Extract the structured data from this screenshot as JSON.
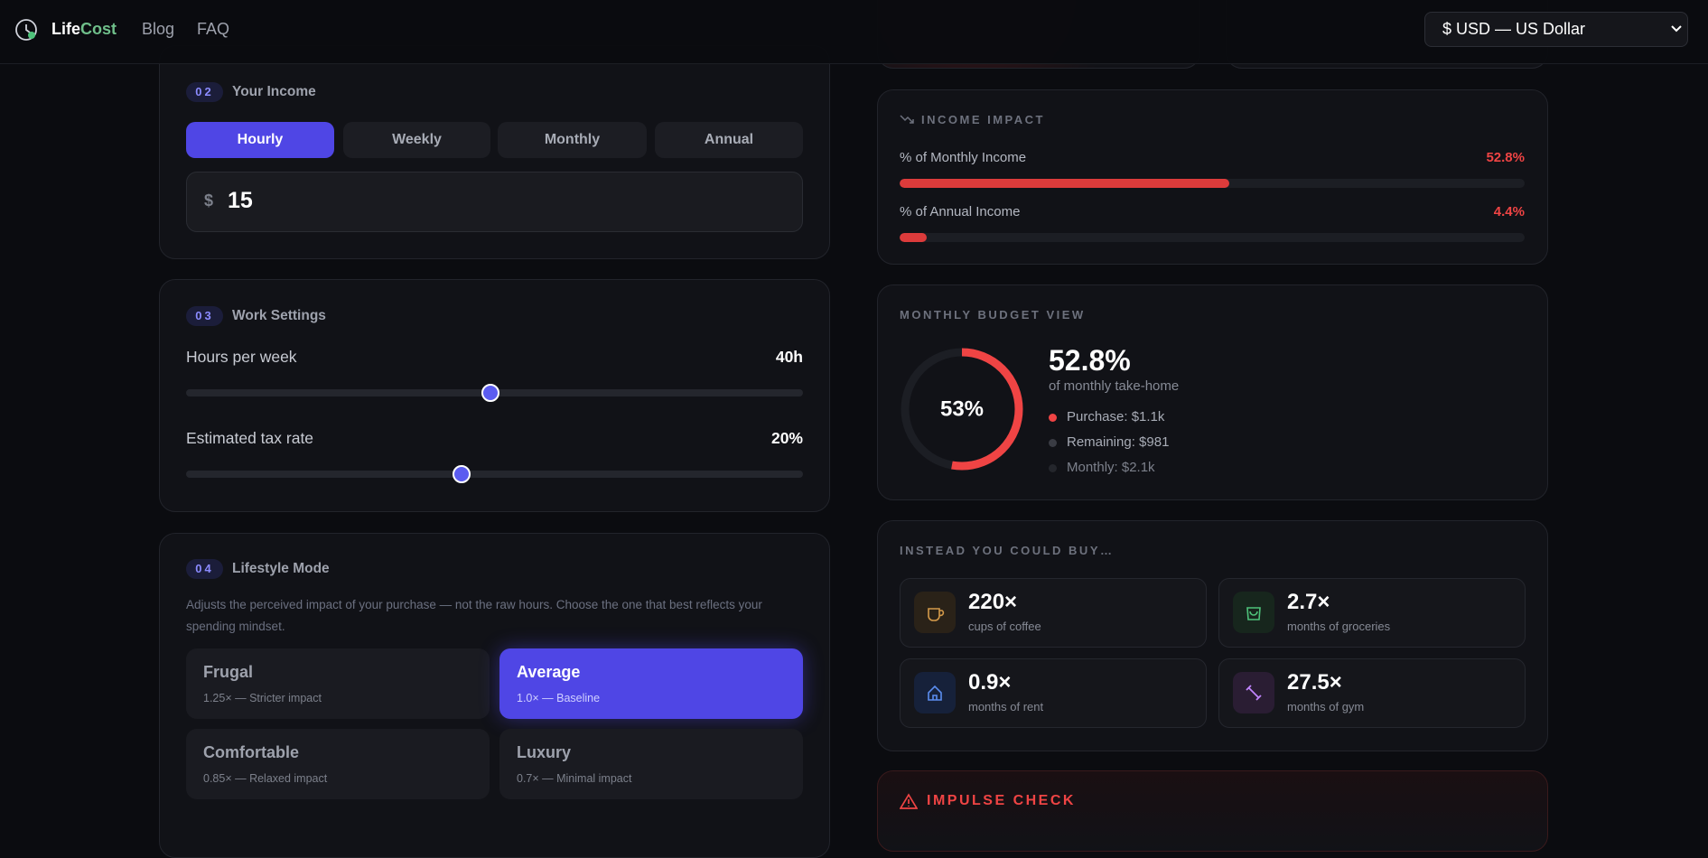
{
  "header": {
    "brand_a": "Life",
    "brand_b": "Cost",
    "nav": [
      "Blog",
      "FAQ"
    ],
    "currency": "$ USD — US Dollar"
  },
  "income": {
    "step": "02",
    "title": "Your Income",
    "periods": [
      "Hourly",
      "Weekly",
      "Monthly",
      "Annual"
    ],
    "currency_symbol": "$",
    "amount": "15"
  },
  "work": {
    "step": "03",
    "title": "Work Settings",
    "sliders": [
      {
        "label": "Hours per week",
        "value_label": "40h"
      },
      {
        "label": "Estimated tax rate",
        "value_label": "20%"
      }
    ]
  },
  "lifestyle": {
    "step": "04",
    "title": "Lifestyle Mode",
    "description": "Adjusts the perceived impact of your purchase — not the raw hours. Choose the one that best reflects your spending mindset.",
    "modes": [
      {
        "name": "Frugal",
        "detail": "1.25× — Stricter impact"
      },
      {
        "name": "Average",
        "detail": "1.0× — Baseline"
      },
      {
        "name": "Comfortable",
        "detail": "0.85× — Relaxed impact"
      },
      {
        "name": "Luxury",
        "detail": "0.7× — Minimal impact"
      }
    ]
  },
  "income_impact": {
    "title": "INCOME IMPACT",
    "rows": [
      {
        "label": "% of Monthly Income",
        "value": 52.8,
        "value_label": "52.8%"
      },
      {
        "label": "% of Annual Income",
        "value": 4.4,
        "value_label": "4.4%"
      }
    ]
  },
  "budget": {
    "title": "MONTHLY BUDGET VIEW",
    "percent": 52.8,
    "ring_label": "53%",
    "headline": "52.8%",
    "subtitle": "of monthly take-home",
    "legend": [
      "Purchase: $1.1k",
      "Remaining: $981",
      "Monthly: $2.1k"
    ]
  },
  "alternatives": {
    "title": "INSTEAD YOU COULD BUY…",
    "items": [
      {
        "amount": "220×",
        "label": "cups of coffee"
      },
      {
        "amount": "2.7×",
        "label": "months of groceries"
      },
      {
        "amount": "0.9×",
        "label": "months of rent"
      },
      {
        "amount": "27.5×",
        "label": "months of gym"
      }
    ]
  },
  "impulse": {
    "title": "IMPULSE CHECK"
  }
}
